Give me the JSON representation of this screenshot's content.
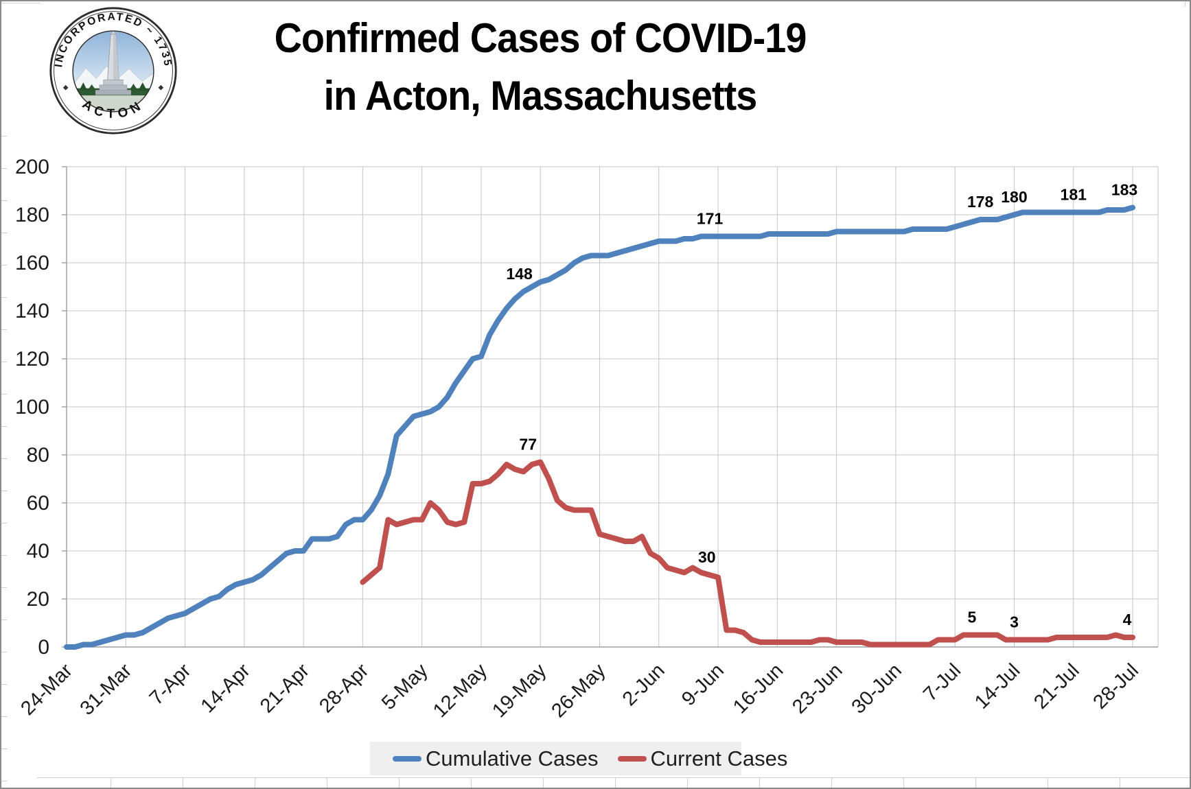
{
  "seal": {
    "arc_text_top": "INCORPORATED ~ 1735",
    "arc_text_bottom": "ACTON"
  },
  "title": {
    "line1": "Confirmed Cases of COVID-19",
    "line2": "in Acton, Massachusetts"
  },
  "legend": {
    "items": [
      {
        "label": "Cumulative Cases",
        "color": "#4F81BD"
      },
      {
        "label": "Current Cases",
        "color": "#C0504D"
      }
    ],
    "position": "bottom",
    "background": "#EFEFEF"
  },
  "colors": {
    "series_blue": "#4F81BD",
    "series_red": "#C0504D",
    "gridline": "#C4C4C4",
    "axis": "#9D9D9D",
    "label_text": "#1B1B1B"
  },
  "chart_data": {
    "type": "line",
    "title": "Confirmed Cases of COVID-19 in Acton, Massachusetts",
    "xlabel": "",
    "ylabel": "",
    "ylim": [
      0,
      200
    ],
    "y_tick_step": 20,
    "y_ticks": [
      0,
      20,
      40,
      60,
      80,
      100,
      120,
      140,
      160,
      180,
      200
    ],
    "grid": true,
    "legend_position": "bottom",
    "x_is_daily": true,
    "num_days": 127,
    "days_per_tick": 7,
    "x_tick_labels": [
      "24-Mar",
      "31-Mar",
      "7-Apr",
      "14-Apr",
      "21-Apr",
      "28-Apr",
      "5-May",
      "12-May",
      "19-May",
      "26-May",
      "2-Jun",
      "9-Jun",
      "16-Jun",
      "23-Jun",
      "30-Jun",
      "7-Jul",
      "14-Jul",
      "21-Jul",
      "28-Jul"
    ],
    "series": [
      {
        "name": "Cumulative Cases",
        "color": "#4F81BD",
        "start_index": 0,
        "values": [
          0,
          0,
          1,
          1,
          2,
          3,
          4,
          5,
          5,
          6,
          8,
          10,
          12,
          13,
          14,
          16,
          18,
          20,
          21,
          24,
          26,
          27,
          28,
          30,
          33,
          36,
          39,
          40,
          40,
          45,
          45,
          45,
          46,
          51,
          53,
          53,
          57,
          63,
          72,
          88,
          92,
          96,
          97,
          98,
          100,
          104,
          110,
          115,
          120,
          121,
          130,
          136,
          141,
          145,
          148,
          150,
          152,
          153,
          155,
          157,
          160,
          162,
          163,
          163,
          163,
          164,
          165,
          166,
          167,
          168,
          169,
          169,
          169,
          170,
          170,
          171,
          171,
          171,
          171,
          171,
          171,
          171,
          171,
          172,
          172,
          172,
          172,
          172,
          172,
          172,
          172,
          173,
          173,
          173,
          173,
          173,
          173,
          173,
          173,
          173,
          174,
          174,
          174,
          174,
          174,
          175,
          176,
          177,
          178,
          178,
          178,
          179,
          180,
          181,
          181,
          181,
          181,
          181,
          181,
          181,
          181,
          181,
          181,
          182,
          182,
          182,
          183
        ]
      },
      {
        "name": "Current Cases",
        "color": "#C0504D",
        "start_index": 35,
        "values": [
          27,
          30,
          33,
          53,
          51,
          52,
          53,
          53,
          60,
          57,
          52,
          51,
          52,
          68,
          68,
          69,
          72,
          76,
          74,
          73,
          76,
          77,
          70,
          61,
          58,
          57,
          57,
          57,
          47,
          46,
          45,
          44,
          44,
          46,
          39,
          37,
          33,
          32,
          31,
          33,
          31,
          30,
          29,
          7,
          7,
          6,
          3,
          2,
          2,
          2,
          2,
          2,
          2,
          2,
          3,
          3,
          2,
          2,
          2,
          2,
          1,
          1,
          1,
          1,
          1,
          1,
          1,
          1,
          3,
          3,
          3,
          5,
          5,
          5,
          5,
          5,
          3,
          3,
          3,
          3,
          3,
          3,
          4,
          4,
          4,
          4,
          4,
          4,
          4,
          5,
          4,
          4
        ]
      }
    ],
    "point_labels": [
      {
        "series": 0,
        "index": 54,
        "text": "148",
        "dx": -6
      },
      {
        "series": 0,
        "index": 77,
        "text": "171",
        "dx": -12
      },
      {
        "series": 0,
        "index": 108,
        "text": "178",
        "dx": 0
      },
      {
        "series": 0,
        "index": 112,
        "text": "180",
        "dx": 0
      },
      {
        "series": 0,
        "index": 119,
        "text": "181",
        "dx": 0
      },
      {
        "series": 0,
        "index": 126,
        "text": "183",
        "dx": -12
      },
      {
        "series": 1,
        "index": 56,
        "text": "77",
        "dx": -18
      },
      {
        "series": 1,
        "index": 76,
        "text": "30",
        "dx": -4
      },
      {
        "series": 1,
        "index": 107,
        "text": "5",
        "dx": 0
      },
      {
        "series": 1,
        "index": 112,
        "text": "3",
        "dx": 0
      },
      {
        "series": 1,
        "index": 126,
        "text": "4",
        "dx": -8
      }
    ]
  }
}
